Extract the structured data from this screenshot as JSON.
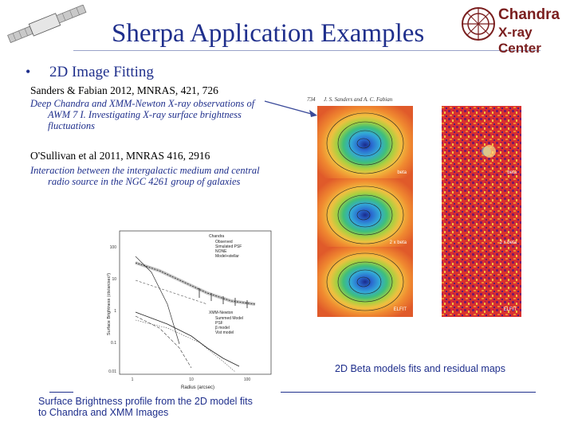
{
  "slide": {
    "title": "Sherpa Application Examples",
    "logo": {
      "line1": "Chandra",
      "line2": "X-ray Center"
    },
    "bullet": "2D Image Fitting",
    "references": [
      {
        "citation": "Sanders & Fabian 2012, MNRAS, 421, 726",
        "description_lines": [
          "Deep Chandra and XMM-Newton X-ray observations of",
          "AWM 7  I. Investigating X-ray surface brightness",
          "fluctuations"
        ]
      },
      {
        "citation": "O'Sullivan et al 2011, MNRAS 416, 2916",
        "description_lines": [
          "Interaction between the intergalactic medium and central",
          "radio source in the NGC 4261 group of galaxies"
        ]
      }
    ],
    "figure_left": {
      "header": "734      J. S. Sanders and A. C. Fabian",
      "model_labels": [
        "beta",
        "2 x beta",
        "ELFIT"
      ],
      "residual_labels": [
        "beta",
        "2 x beta",
        "ELFIT"
      ]
    },
    "figure_plot": {
      "legend_top": [
        "Chandra",
        "Observed",
        "Simulated PSF",
        "NONE",
        "Model+stellar"
      ],
      "legend_bottom": [
        "XMM-Newton",
        "Summed Model",
        "PSF",
        "β model",
        "Vist model"
      ],
      "xlabel": "Radius (arcsec)",
      "ylabel": "Surface Brightness (cts/arcsec²)",
      "yticks": [
        "100",
        "10",
        "1",
        "0.1",
        "0.01"
      ],
      "xticks": [
        "1",
        "10",
        "100"
      ]
    },
    "captions": {
      "right": "2D Beta models fits and residual maps",
      "left_line1": "Surface Brightness profile from the 2D model fits",
      "left_line2": "to Chandra and XMM Images"
    }
  }
}
